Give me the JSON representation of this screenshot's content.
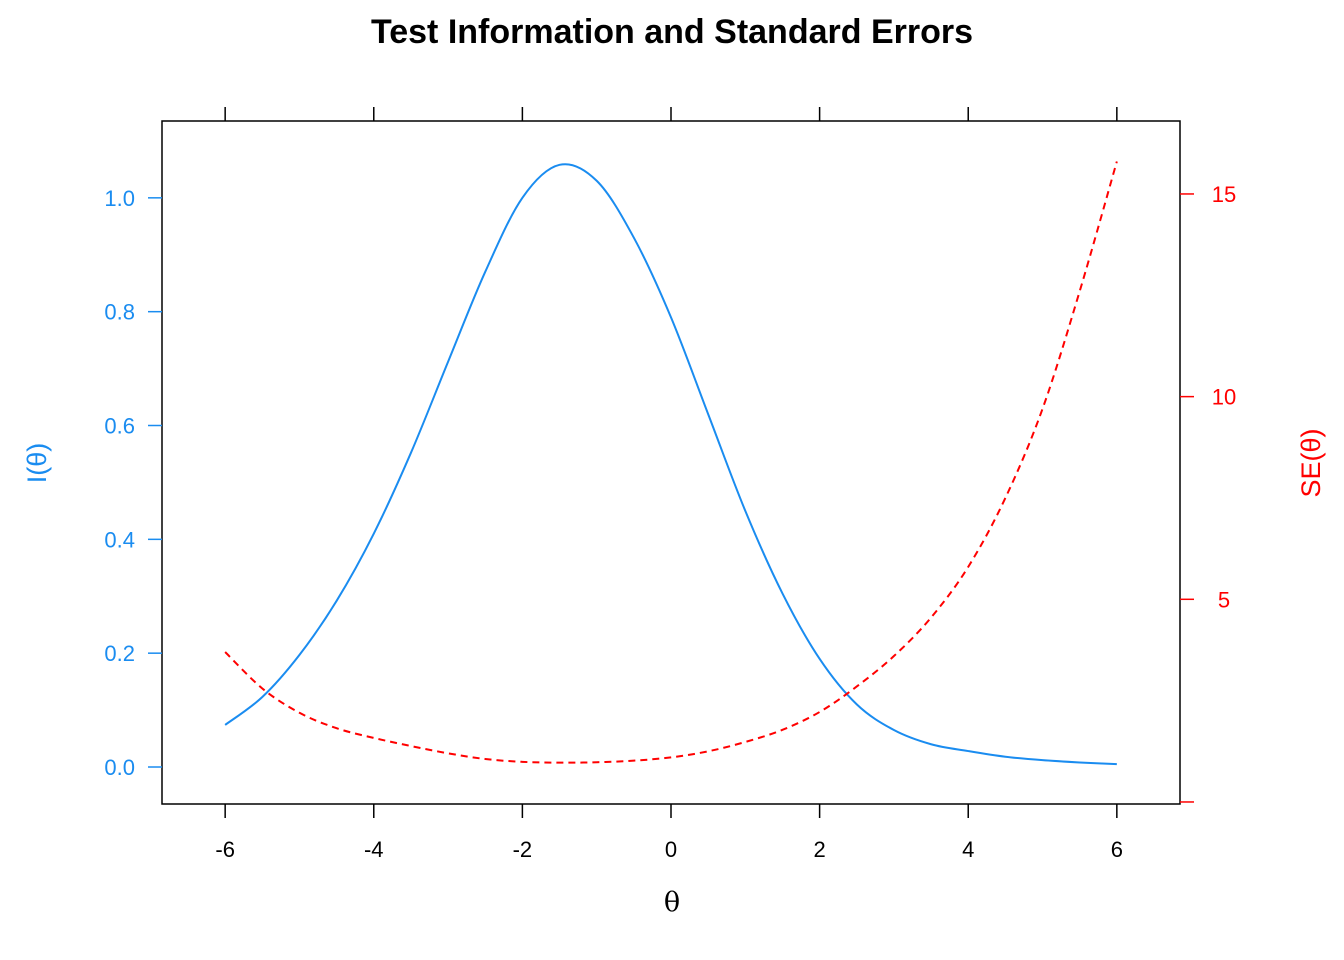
{
  "chart_data": {
    "type": "line",
    "title": "Test Information and Standard Errors",
    "xlabel": "θ",
    "ylabel_left": "I(θ)",
    "ylabel_right": "SE(θ)",
    "xlim": [
      -6.85,
      6.85
    ],
    "ylim_left": [
      -0.065,
      1.135
    ],
    "ylim_right": [
      -0.05,
      16.8
    ],
    "x_ticks": [
      "-6",
      "-4",
      "-2",
      "0",
      "2",
      "4",
      "6"
    ],
    "x_tick_values": [
      -6,
      -4,
      -2,
      0,
      2,
      4,
      6
    ],
    "left_ticks": [
      "0.0",
      "0.2",
      "0.4",
      "0.6",
      "0.8",
      "1.0"
    ],
    "left_tick_values": [
      0,
      0.2,
      0.4,
      0.6,
      0.8,
      1.0
    ],
    "right_ticks": [
      "",
      "5",
      "10",
      "15"
    ],
    "right_tick_values": [
      0,
      5,
      10,
      15
    ],
    "grid": false,
    "series": [
      {
        "name": "I(θ)",
        "axis": "left",
        "style": "solid",
        "x": [
          -6,
          -5.5,
          -5,
          -4.5,
          -4,
          -3.5,
          -3,
          -2.5,
          -2,
          -1.5,
          -1,
          -0.5,
          0,
          0.5,
          1,
          1.5,
          2,
          2.5,
          3,
          3.5,
          4,
          4.5,
          5,
          5.5,
          6
        ],
        "values": [
          0.074,
          0.123,
          0.197,
          0.292,
          0.41,
          0.552,
          0.712,
          0.87,
          1.0,
          1.058,
          1.03,
          0.93,
          0.79,
          0.62,
          0.45,
          0.305,
          0.19,
          0.11,
          0.065,
          0.04,
          0.028,
          0.018,
          0.012,
          0.008,
          0.005
        ]
      },
      {
        "name": "SE(θ)",
        "axis": "right",
        "style": "dashed",
        "x": [
          -6,
          -5.5,
          -5,
          -4.5,
          -4,
          -3.5,
          -3,
          -2.5,
          -2,
          -1.5,
          -1,
          -0.5,
          0,
          0.5,
          1,
          1.5,
          2,
          2.5,
          3,
          3.5,
          4,
          4.5,
          5,
          5.5,
          6
        ],
        "values": [
          3.7,
          2.8,
          2.2,
          1.82,
          1.58,
          1.38,
          1.2,
          1.06,
          0.99,
          0.97,
          0.98,
          1.02,
          1.1,
          1.25,
          1.48,
          1.78,
          2.22,
          2.85,
          3.6,
          4.55,
          5.8,
          7.5,
          9.7,
          12.6,
          15.8
        ]
      }
    ],
    "colors": {
      "information": "#1a8cf0",
      "se": "#ff0000",
      "axis": "#000000"
    }
  }
}
